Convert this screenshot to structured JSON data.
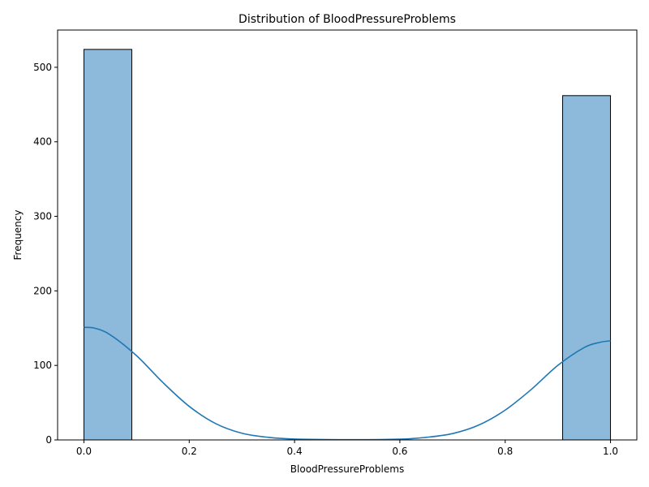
{
  "chart_data": {
    "type": "bar",
    "title": "Distribution of BloodPressureProblems",
    "xlabel": "BloodPressureProblems",
    "ylabel": "Frequency",
    "xlim": [
      -0.05,
      1.05
    ],
    "ylim": [
      0,
      550
    ],
    "xticks": [
      0.0,
      0.2,
      0.4,
      0.6,
      0.8,
      1.0
    ],
    "xtick_labels": [
      "0.0",
      "0.2",
      "0.4",
      "0.6",
      "0.8",
      "1.0"
    ],
    "yticks": [
      0,
      100,
      200,
      300,
      400,
      500
    ],
    "ytick_labels": [
      "0",
      "100",
      "200",
      "300",
      "400",
      "500"
    ],
    "bins": [
      {
        "x0": 0.0,
        "x1": 0.0909,
        "count": 524
      },
      {
        "x0": 0.9091,
        "x1": 1.0,
        "count": 462
      }
    ],
    "kde": {
      "x": [
        0.0,
        0.02,
        0.05,
        0.1,
        0.15,
        0.2,
        0.25,
        0.3,
        0.35,
        0.4,
        0.5,
        0.6,
        0.65,
        0.7,
        0.75,
        0.8,
        0.85,
        0.9,
        0.95,
        0.98,
        1.0
      ],
      "y": [
        151,
        150,
        141,
        113,
        77,
        45,
        22,
        9,
        3.5,
        1.2,
        0.3,
        1.0,
        3.5,
        8.5,
        20,
        40,
        68,
        100,
        124,
        131,
        133
      ]
    },
    "colors": {
      "bar_fill": "#8db9da",
      "bar_edge": "#000000",
      "kde_line": "#1f77b4"
    },
    "grid": false,
    "legend": "none"
  }
}
